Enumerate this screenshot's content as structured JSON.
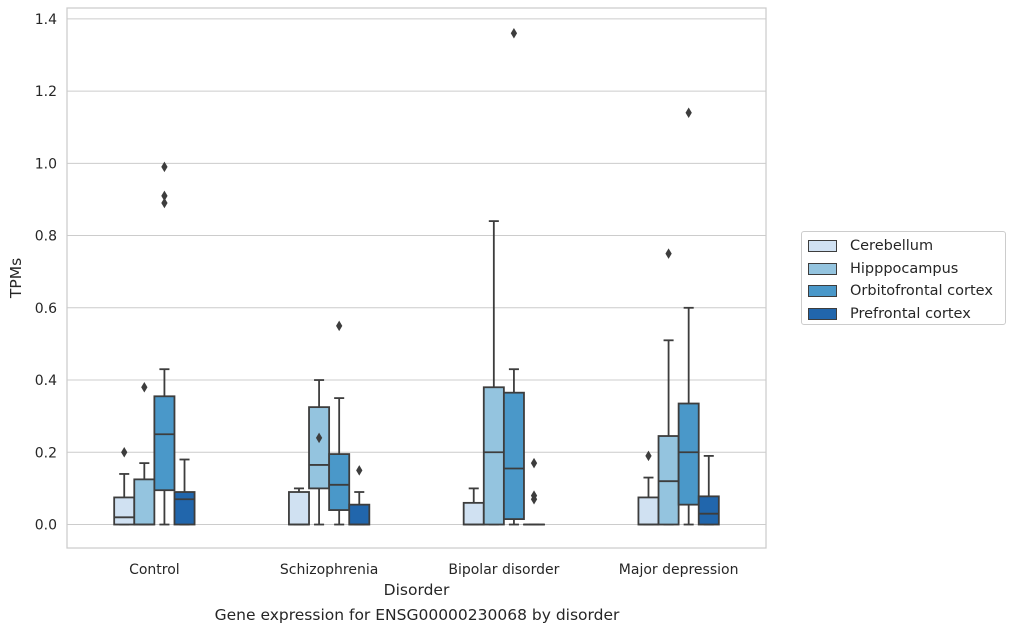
{
  "chart_data": {
    "type": "box",
    "title": "Gene expression for ENSG00000230068 by disorder",
    "xlabel": "Disorder",
    "ylabel": "TPMs",
    "ylim": [
      -0.065,
      1.43
    ],
    "yticks": [
      "0.0",
      "0.2",
      "0.4",
      "0.6",
      "0.8",
      "1.0",
      "1.2",
      "1.4"
    ],
    "grid": "horizontal",
    "legend_position": "right",
    "categories": [
      "Control",
      "Schizophrenia",
      "Bipolar disorder",
      "Major depression"
    ],
    "series": [
      {
        "name": "Cerebellum",
        "color": "#d0e1f2",
        "boxes": [
          {
            "min": 0.0,
            "q1": 0.0,
            "median": 0.02,
            "q3": 0.075,
            "max": 0.14,
            "outliers": [
              0.2
            ]
          },
          {
            "min": 0.0,
            "q1": 0.0,
            "median": 0.0,
            "q3": 0.09,
            "max": 0.1,
            "outliers": []
          },
          {
            "min": 0.0,
            "q1": 0.0,
            "median": 0.0,
            "q3": 0.06,
            "max": 0.1,
            "outliers": []
          },
          {
            "min": 0.0,
            "q1": 0.0,
            "median": 0.0,
            "q3": 0.075,
            "max": 0.13,
            "outliers": [
              0.19
            ]
          }
        ]
      },
      {
        "name": "Hipppocampus",
        "color": "#94c4df",
        "boxes": [
          {
            "min": 0.0,
            "q1": 0.0,
            "median": 0.0,
            "q3": 0.125,
            "max": 0.17,
            "outliers": [
              0.38
            ]
          },
          {
            "min": 0.0,
            "q1": 0.1,
            "median": 0.165,
            "q3": 0.325,
            "max": 0.4,
            "outliers": [
              0.24
            ]
          },
          {
            "min": 0.0,
            "q1": 0.0,
            "median": 0.2,
            "q3": 0.38,
            "max": 0.84,
            "outliers": []
          },
          {
            "min": 0.0,
            "q1": 0.0,
            "median": 0.12,
            "q3": 0.245,
            "max": 0.51,
            "outliers": [
              0.75
            ]
          }
        ]
      },
      {
        "name": "Orbitofrontal cortex",
        "color": "#4a98c9",
        "boxes": [
          {
            "min": 0.0,
            "q1": 0.095,
            "median": 0.25,
            "q3": 0.355,
            "max": 0.43,
            "outliers": [
              0.99,
              0.91,
              0.89
            ]
          },
          {
            "min": 0.0,
            "q1": 0.04,
            "median": 0.11,
            "q3": 0.195,
            "max": 0.35,
            "outliers": [
              0.55
            ]
          },
          {
            "min": 0.0,
            "q1": 0.015,
            "median": 0.155,
            "q3": 0.365,
            "max": 0.43,
            "outliers": [
              1.36
            ]
          },
          {
            "min": 0.0,
            "q1": 0.055,
            "median": 0.2,
            "q3": 0.335,
            "max": 0.6,
            "outliers": [
              1.14
            ]
          }
        ]
      },
      {
        "name": "Prefrontal cortex",
        "color": "#2166ac",
        "boxes": [
          {
            "min": 0.0,
            "q1": 0.0,
            "median": 0.07,
            "q3": 0.09,
            "max": 0.18,
            "outliers": []
          },
          {
            "min": 0.0,
            "q1": 0.0,
            "median": 0.0,
            "q3": 0.055,
            "max": 0.09,
            "outliers": [
              0.15
            ]
          },
          {
            "min": 0.0,
            "q1": 0.0,
            "median": 0.0,
            "q3": 0.0,
            "max": 0.0,
            "outliers": [
              0.17,
              0.08,
              0.07
            ]
          },
          {
            "min": 0.0,
            "q1": 0.0,
            "median": 0.03,
            "q3": 0.078,
            "max": 0.19,
            "outliers": []
          }
        ]
      }
    ]
  }
}
